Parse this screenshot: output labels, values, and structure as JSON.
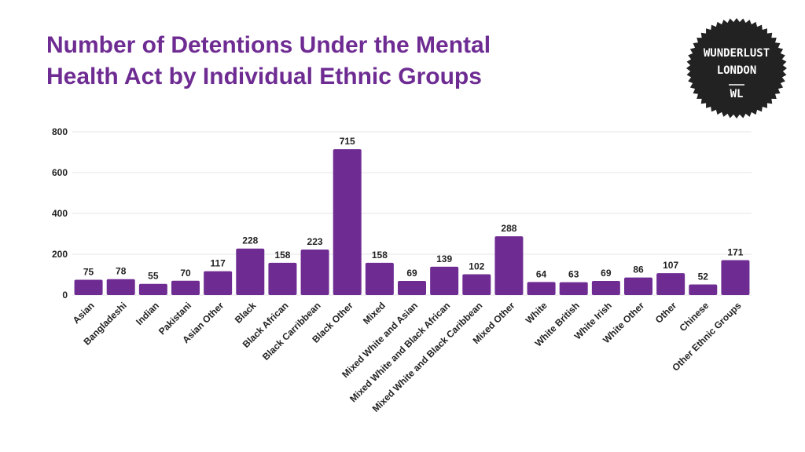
{
  "title": {
    "line1": "Number of Detentions Under the Mental",
    "line2": "Health Act by Individual Ethnic Groups"
  },
  "logo": {
    "line1": "WUNDERLUST",
    "line2": "LONDON",
    "monogram": "WL"
  },
  "colors": {
    "title": "#6e2c93",
    "bar": "#6e2c93",
    "logo_bg": "#222222",
    "grid": "#e6e6e6"
  },
  "chart_data": {
    "type": "bar",
    "title": "Number of Detentions Under the Mental Health Act by Individual Ethnic Groups",
    "xlabel": "",
    "ylabel": "",
    "ylim": [
      0,
      800
    ],
    "yticks": [
      0,
      200,
      400,
      600,
      800
    ],
    "grid": true,
    "categories": [
      "Asian",
      "Bangladeshi",
      "Indian",
      "Pakistani",
      "Asian Other",
      "Black",
      "Black African",
      "Black Carribbean",
      "Black Other",
      "Mixed",
      "Mixed White and Asian",
      "Mixed White and Black African",
      "Mixed White and Black Caribbean",
      "Mixed Other",
      "White",
      "White British",
      "White Irish",
      "White Other",
      "Other",
      "Chinese",
      "Other Ethnic Groups"
    ],
    "values": [
      75,
      78,
      55,
      70,
      117,
      228,
      158,
      223,
      715,
      158,
      69,
      139,
      102,
      288,
      64,
      63,
      69,
      86,
      107,
      52,
      171
    ]
  }
}
